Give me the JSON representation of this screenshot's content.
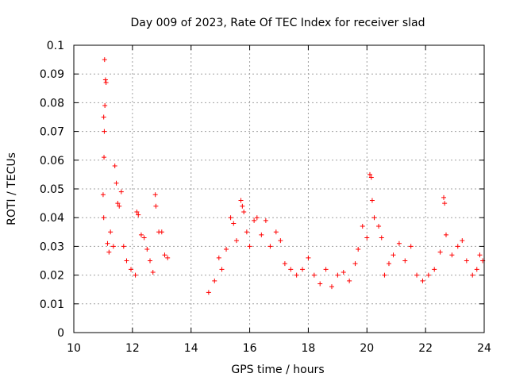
{
  "chart_data": {
    "type": "scatter",
    "title": "Day 009 of 2023, Rate Of TEC Index for receiver slad",
    "xlabel": "GPS time / hours",
    "ylabel": "ROTI / TECUs",
    "xlim": [
      10,
      24
    ],
    "ylim": [
      0,
      0.1
    ],
    "x_ticks": [
      "10",
      "12",
      "14",
      "16",
      "18",
      "20",
      "22",
      "24"
    ],
    "y_ticks": [
      "0",
      "0.01",
      "0.02",
      "0.03",
      "0.04",
      "0.05",
      "0.06",
      "0.07",
      "0.08",
      "0.09",
      "0.1"
    ],
    "grid": true,
    "legend": "none",
    "marker": "plus",
    "series_color": "#ff0000",
    "series": [
      {
        "values": [
          [
            11.05,
            0.095
          ],
          [
            11.08,
            0.088
          ],
          [
            11.1,
            0.087
          ],
          [
            11.06,
            0.079
          ],
          [
            11.02,
            0.075
          ],
          [
            11.04,
            0.07
          ],
          [
            11.03,
            0.061
          ],
          [
            11.0,
            0.048
          ],
          [
            11.02,
            0.04
          ],
          [
            11.15,
            0.031
          ],
          [
            11.2,
            0.028
          ],
          [
            11.25,
            0.035
          ],
          [
            11.35,
            0.03
          ],
          [
            11.4,
            0.058
          ],
          [
            11.45,
            0.052
          ],
          [
            11.5,
            0.045
          ],
          [
            11.55,
            0.044
          ],
          [
            11.62,
            0.049
          ],
          [
            11.7,
            0.03
          ],
          [
            11.8,
            0.025
          ],
          [
            11.95,
            0.022
          ],
          [
            12.1,
            0.02
          ],
          [
            12.15,
            0.042
          ],
          [
            12.2,
            0.041
          ],
          [
            12.3,
            0.034
          ],
          [
            12.4,
            0.033
          ],
          [
            12.5,
            0.029
          ],
          [
            12.6,
            0.025
          ],
          [
            12.7,
            0.021
          ],
          [
            12.78,
            0.048
          ],
          [
            12.8,
            0.044
          ],
          [
            12.9,
            0.035
          ],
          [
            13.0,
            0.035
          ],
          [
            13.1,
            0.027
          ],
          [
            13.2,
            0.026
          ],
          [
            14.6,
            0.014
          ],
          [
            14.8,
            0.018
          ],
          [
            14.95,
            0.026
          ],
          [
            15.05,
            0.022
          ],
          [
            15.2,
            0.029
          ],
          [
            15.35,
            0.04
          ],
          [
            15.45,
            0.038
          ],
          [
            15.55,
            0.032
          ],
          [
            15.7,
            0.046
          ],
          [
            15.75,
            0.044
          ],
          [
            15.8,
            0.042
          ],
          [
            15.9,
            0.035
          ],
          [
            16.0,
            0.03
          ],
          [
            16.15,
            0.039
          ],
          [
            16.25,
            0.04
          ],
          [
            16.4,
            0.034
          ],
          [
            16.55,
            0.039
          ],
          [
            16.7,
            0.03
          ],
          [
            16.9,
            0.035
          ],
          [
            17.05,
            0.032
          ],
          [
            17.2,
            0.024
          ],
          [
            17.4,
            0.022
          ],
          [
            17.6,
            0.02
          ],
          [
            17.8,
            0.022
          ],
          [
            18.0,
            0.026
          ],
          [
            18.2,
            0.02
          ],
          [
            18.4,
            0.017
          ],
          [
            18.6,
            0.022
          ],
          [
            18.8,
            0.016
          ],
          [
            19.0,
            0.02
          ],
          [
            19.2,
            0.021
          ],
          [
            19.4,
            0.018
          ],
          [
            19.6,
            0.024
          ],
          [
            19.7,
            0.029
          ],
          [
            19.85,
            0.037
          ],
          [
            20.0,
            0.033
          ],
          [
            20.1,
            0.055
          ],
          [
            20.15,
            0.054
          ],
          [
            20.18,
            0.046
          ],
          [
            20.25,
            0.04
          ],
          [
            20.4,
            0.037
          ],
          [
            20.5,
            0.033
          ],
          [
            20.6,
            0.02
          ],
          [
            20.75,
            0.024
          ],
          [
            20.9,
            0.027
          ],
          [
            21.1,
            0.031
          ],
          [
            21.3,
            0.025
          ],
          [
            21.5,
            0.03
          ],
          [
            21.7,
            0.02
          ],
          [
            21.9,
            0.018
          ],
          [
            22.1,
            0.02
          ],
          [
            22.3,
            0.022
          ],
          [
            22.5,
            0.028
          ],
          [
            22.62,
            0.047
          ],
          [
            22.65,
            0.045
          ],
          [
            22.7,
            0.034
          ],
          [
            22.9,
            0.027
          ],
          [
            23.1,
            0.03
          ],
          [
            23.25,
            0.032
          ],
          [
            23.4,
            0.025
          ],
          [
            23.6,
            0.02
          ],
          [
            23.75,
            0.022
          ],
          [
            23.85,
            0.027
          ],
          [
            23.95,
            0.025
          ]
        ]
      }
    ]
  }
}
